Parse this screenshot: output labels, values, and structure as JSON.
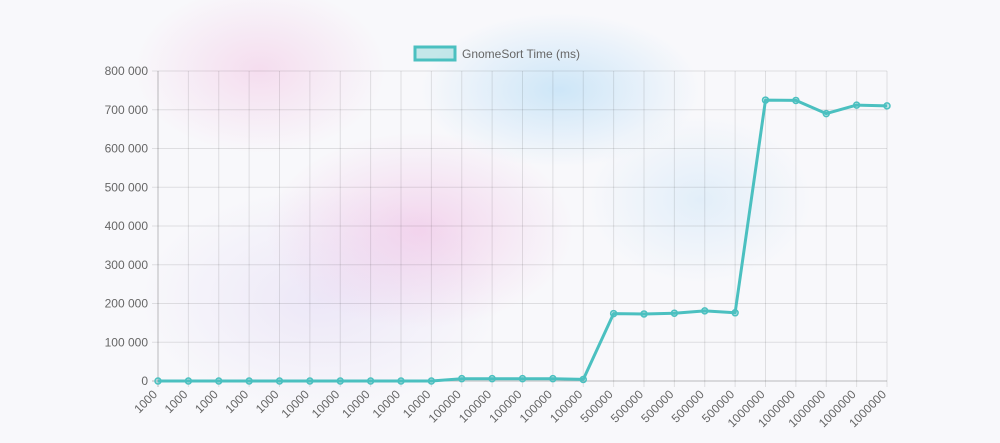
{
  "colors": {
    "line": "#4bc0c0",
    "legend_fill": "rgba(75, 192, 192, 0.3)"
  },
  "chart_data": {
    "type": "line",
    "title": "",
    "xlabel": "",
    "ylabel": "",
    "legend_position": "top",
    "grid": true,
    "ylim": [
      0,
      800000
    ],
    "y_ticks": [
      "0",
      "100 000",
      "200 000",
      "300 000",
      "400 000",
      "500 000",
      "600 000",
      "700 000",
      "800 000"
    ],
    "y_tick_values": [
      0,
      100000,
      200000,
      300000,
      400000,
      500000,
      600000,
      700000,
      800000
    ],
    "categories": [
      "1000",
      "1000",
      "1000",
      "1000",
      "1000",
      "10000",
      "10000",
      "10000",
      "10000",
      "10000",
      "100000",
      "100000",
      "100000",
      "100000",
      "100000",
      "500000",
      "500000",
      "500000",
      "500000",
      "500000",
      "1000000",
      "1000000",
      "1000000",
      "1000000",
      "1000000"
    ],
    "series": [
      {
        "name": "GnomeSort Time (ms)",
        "values": [
          0,
          0,
          0,
          0,
          0,
          0,
          0,
          0,
          0,
          0,
          6000,
          6000,
          6000,
          6000,
          4000,
          174000,
          173000,
          175000,
          181000,
          176000,
          725000,
          724000,
          690000,
          712000,
          710000
        ]
      }
    ]
  }
}
